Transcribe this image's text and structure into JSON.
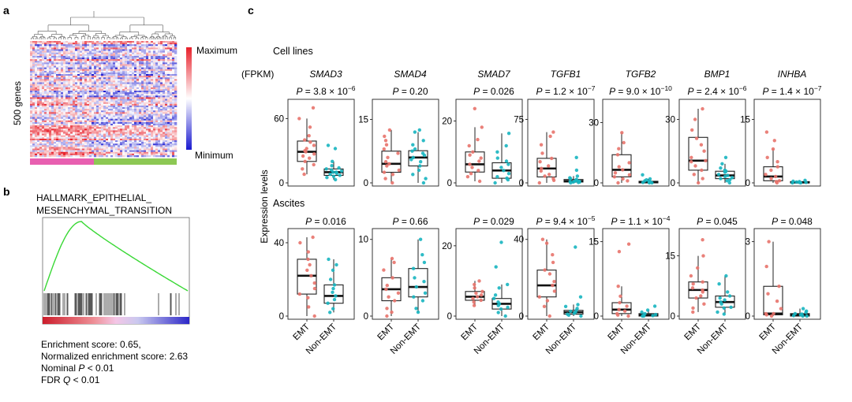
{
  "panels": {
    "a": {
      "letter": "a",
      "y_label": "500 genes",
      "legend_max": "Maximum",
      "legend_min": "Minimum",
      "colors": {
        "high": "#e8202a",
        "low": "#1a1ad0",
        "mid": "#ffffff",
        "group_emt": "#e85fb0",
        "group_non_emt": "#8dc854"
      }
    },
    "b": {
      "letter": "b",
      "title_line1": "HALLMARK_EPITHELIAL_",
      "title_line2": "MESENCHYMAL_TRANSITION",
      "stats": [
        {
          "pre": "Enrichment score: 0.65,",
          "ital": "",
          "post": ""
        },
        {
          "pre": "Normalized enrichment score: 2.63",
          "ital": "",
          "post": ""
        },
        {
          "pre": "Nominal ",
          "ital": "P",
          "post": " < 0.01"
        },
        {
          "pre": "FDR ",
          "ital": "Q",
          "post": " < 0.01"
        }
      ],
      "curve_color": "#39d835"
    },
    "c": {
      "letter": "c",
      "row1_label": "Cell lines",
      "row2_label": "Ascites",
      "unit_label": "(FPKM)",
      "y_axis_label": "Expression levels",
      "categories": [
        "EMT",
        "Non-EMT"
      ],
      "colors": {
        "EMT": "#e8736b",
        "Non-EMT": "#17b5c0"
      }
    }
  },
  "chart_data": [
    {
      "type": "boxplot",
      "row": "Cell lines",
      "gene": "SMAD3",
      "p_mant": "3.8",
      "p_exp": "−6",
      "ylim": [
        0,
        75
      ],
      "ticks": [
        {
          "v": 0,
          "label": "0"
        },
        {
          "v": 60,
          "label": "60"
        }
      ],
      "boxes": [
        {
          "group": "EMT",
          "q1": 20,
          "median": 29,
          "q3": 39,
          "whisker_low": 8,
          "whisker_high": 60,
          "points": [
            8,
            13,
            17,
            20,
            23,
            25,
            27,
            29,
            30,
            32,
            35,
            38,
            40,
            44,
            52,
            60,
            70
          ]
        },
        {
          "group": "Non-EMT",
          "q1": 7,
          "median": 10,
          "q3": 13,
          "whisker_low": 3,
          "whisker_high": 20,
          "points": [
            3,
            5,
            6,
            7,
            8,
            9,
            10,
            10,
            11,
            12,
            13,
            14,
            16,
            20,
            32,
            35
          ]
        }
      ]
    },
    {
      "type": "boxplot",
      "row": "Cell lines",
      "gene": "SMAD4",
      "p_mant": "0.20",
      "p_exp": "",
      "ylim": [
        0,
        19
      ],
      "ticks": [
        {
          "v": 0,
          "label": "0"
        },
        {
          "v": 15,
          "label": "15"
        }
      ],
      "boxes": [
        {
          "group": "EMT",
          "q1": 2.5,
          "median": 4.5,
          "q3": 7.5,
          "whisker_low": 0,
          "whisker_high": 12.5,
          "points": [
            0,
            1,
            2,
            2.5,
            3,
            4,
            4.5,
            5,
            6,
            7,
            8,
            9,
            10,
            11,
            12.5
          ]
        },
        {
          "group": "Non-EMT",
          "q1": 4,
          "median": 6,
          "q3": 7.6,
          "whisker_low": 0,
          "whisker_high": 12,
          "points": [
            0,
            1,
            2,
            3,
            4,
            5,
            5.5,
            6,
            6.5,
            7,
            7.5,
            8,
            9,
            10,
            12,
            12.5
          ]
        }
      ]
    },
    {
      "type": "boxplot",
      "row": "Cell lines",
      "gene": "SMAD7",
      "p_mant": "0.026",
      "p_exp": "",
      "ylim": [
        0,
        26
      ],
      "ticks": [
        {
          "v": 0,
          "label": "0"
        },
        {
          "v": 20,
          "label": "20"
        }
      ],
      "boxes": [
        {
          "group": "EMT",
          "q1": 3.5,
          "median": 6,
          "q3": 10,
          "whisker_low": 0.5,
          "whisker_high": 18,
          "points": [
            0.5,
            2,
            3,
            4,
            5,
            6,
            7,
            8,
            9,
            10,
            12,
            14,
            18,
            24
          ]
        },
        {
          "group": "Non-EMT",
          "q1": 1.5,
          "median": 4,
          "q3": 6.5,
          "whisker_low": 0,
          "whisker_high": 16,
          "points": [
            0,
            1,
            1.5,
            2,
            3,
            4,
            5,
            6,
            7,
            8,
            10,
            12,
            16
          ]
        }
      ]
    },
    {
      "type": "boxplot",
      "row": "Cell lines",
      "gene": "TGFB1",
      "p_mant": "1.2",
      "p_exp": "−7",
      "ylim": [
        0,
        95
      ],
      "ticks": [
        {
          "v": 0,
          "label": "0"
        },
        {
          "v": 75,
          "label": "75"
        }
      ],
      "boxes": [
        {
          "group": "EMT",
          "q1": 7,
          "median": 17,
          "q3": 29,
          "whisker_low": 0,
          "whisker_high": 60,
          "points": [
            0,
            3,
            5,
            8,
            10,
            14,
            17,
            20,
            25,
            29,
            35,
            45,
            55,
            60
          ]
        },
        {
          "group": "Non-EMT",
          "q1": 1,
          "median": 2,
          "q3": 4,
          "whisker_low": 0,
          "whisker_high": 8,
          "points": [
            0,
            0.5,
            1,
            1,
            1.5,
            2,
            2,
            3,
            3,
            4,
            5,
            6,
            8,
            15,
            30
          ]
        }
      ]
    },
    {
      "type": "boxplot",
      "row": "Cell lines",
      "gene": "TGFB2",
      "p_mant": "9.0",
      "p_exp": "−10",
      "ylim": [
        0,
        40
      ],
      "ticks": [
        {
          "v": 0,
          "label": "0"
        },
        {
          "v": 30,
          "label": "30"
        }
      ],
      "boxes": [
        {
          "group": "EMT",
          "q1": 3,
          "median": 6.5,
          "q3": 14,
          "whisker_low": 0,
          "whisker_high": 25,
          "points": [
            0,
            1,
            2,
            3,
            4,
            5,
            6.5,
            8,
            10,
            14,
            17,
            20,
            25
          ]
        },
        {
          "group": "Non-EMT",
          "q1": 0,
          "median": 0.3,
          "q3": 0.8,
          "whisker_low": 0,
          "whisker_high": 2,
          "points": [
            0,
            0,
            0.2,
            0.3,
            0.5,
            0.8,
            1,
            1.5,
            2,
            4
          ]
        }
      ]
    },
    {
      "type": "boxplot",
      "row": "Cell lines",
      "gene": "BMP1",
      "p_mant": "2.4",
      "p_exp": "−6",
      "ylim": [
        0,
        38
      ],
      "ticks": [
        {
          "v": 0,
          "label": "0"
        },
        {
          "v": 30,
          "label": "30"
        }
      ],
      "boxes": [
        {
          "group": "EMT",
          "q1": 6,
          "median": 10.5,
          "q3": 21.5,
          "whisker_low": 0,
          "whisker_high": 35,
          "points": [
            0,
            2,
            4,
            6,
            8,
            10,
            10.5,
            12,
            15,
            18,
            21,
            25,
            30,
            35
          ]
        },
        {
          "group": "Non-EMT",
          "q1": 2,
          "median": 3.5,
          "q3": 5.5,
          "whisker_low": 0,
          "whisker_high": 9,
          "points": [
            0,
            1,
            1.5,
            2,
            2.5,
            3,
            3.5,
            4,
            5,
            5.5,
            6,
            7,
            9,
            12
          ]
        }
      ]
    },
    {
      "type": "boxplot",
      "row": "Cell lines",
      "gene": "INHBA",
      "p_mant": "1.4",
      "p_exp": "−7",
      "ylim": [
        0,
        19
      ],
      "ticks": [
        {
          "v": 0,
          "label": "0"
        },
        {
          "v": 15,
          "label": "15"
        }
      ],
      "boxes": [
        {
          "group": "EMT",
          "q1": 0.5,
          "median": 1.5,
          "q3": 3.8,
          "whisker_low": 0,
          "whisker_high": 8,
          "points": [
            0,
            0.3,
            0.5,
            1,
            1.5,
            2,
            3,
            3.8,
            5,
            6,
            8,
            10,
            12
          ]
        },
        {
          "group": "Non-EMT",
          "q1": 0,
          "median": 0.1,
          "q3": 0.3,
          "whisker_low": 0,
          "whisker_high": 0.6,
          "points": [
            0,
            0,
            0.1,
            0.1,
            0.2,
            0.3,
            0.4,
            0.6
          ]
        }
      ]
    },
    {
      "type": "boxplot",
      "row": "Ascites",
      "gene": "SMAD3",
      "p_mant": "0.016",
      "p_exp": "",
      "ylim": [
        0,
        46
      ],
      "ticks": [
        {
          "v": 0,
          "label": "0"
        },
        {
          "v": 40,
          "label": "40"
        }
      ],
      "boxes": [
        {
          "group": "EMT",
          "q1": 12,
          "median": 22,
          "q3": 31,
          "whisker_low": 0,
          "whisker_high": 43,
          "points": [
            0,
            5,
            10,
            12,
            15,
            18,
            22,
            25,
            28,
            31,
            35,
            40,
            43
          ]
        },
        {
          "group": "Non-EMT",
          "q1": 7,
          "median": 11,
          "q3": 17,
          "whisker_low": 2,
          "whisker_high": 31,
          "points": [
            2,
            4,
            7,
            9,
            11,
            13,
            15,
            17,
            20,
            25,
            28,
            31
          ]
        }
      ]
    },
    {
      "type": "boxplot",
      "row": "Ascites",
      "gene": "SMAD4",
      "p_mant": "0.66",
      "p_exp": "",
      "ylim": [
        0,
        11
      ],
      "ticks": [
        {
          "v": 0,
          "label": "0"
        },
        {
          "v": 10,
          "label": "10"
        }
      ],
      "boxes": [
        {
          "group": "EMT",
          "q1": 2,
          "median": 3.5,
          "q3": 5,
          "whisker_low": 0,
          "whisker_high": 7.5,
          "points": [
            0,
            0.5,
            1,
            2,
            2.5,
            3,
            3.5,
            4,
            5,
            6,
            7,
            7.5
          ]
        },
        {
          "group": "Non-EMT",
          "q1": 2.5,
          "median": 3.8,
          "q3": 6.2,
          "whisker_low": 0.5,
          "whisker_high": 10,
          "points": [
            0.5,
            1,
            2,
            2.5,
            3,
            3.8,
            4.5,
            5,
            6.2,
            7,
            8,
            10
          ]
        }
      ]
    },
    {
      "type": "boxplot",
      "row": "Ascites",
      "gene": "SMAD7",
      "p_mant": "0.029",
      "p_exp": "",
      "ylim": [
        0,
        24
      ],
      "ticks": [
        {
          "v": 0,
          "label": "0"
        },
        {
          "v": 20,
          "label": "20"
        }
      ],
      "boxes": [
        {
          "group": "EMT",
          "q1": 4.5,
          "median": 5.5,
          "q3": 7,
          "whisker_low": 3,
          "whisker_high": 10,
          "points": [
            3,
            4,
            4.5,
            5,
            5.5,
            6,
            6.5,
            7,
            8,
            9,
            10
          ]
        },
        {
          "group": "Non-EMT",
          "q1": 2,
          "median": 3.5,
          "q3": 5,
          "whisker_low": 0,
          "whisker_high": 9,
          "points": [
            0,
            1,
            2,
            2.5,
            3,
            3.5,
            4,
            5,
            6,
            8,
            9,
            14,
            21
          ]
        }
      ]
    },
    {
      "type": "boxplot",
      "row": "Ascites",
      "gene": "TGFB1",
      "p_mant": "9.4",
      "p_exp": "−5",
      "ylim": [
        0,
        44
      ],
      "ticks": [
        {
          "v": 0,
          "label": "0"
        },
        {
          "v": 40,
          "label": "40"
        }
      ],
      "boxes": [
        {
          "group": "EMT",
          "q1": 10,
          "median": 16,
          "q3": 24,
          "whisker_low": 0,
          "whisker_high": 40,
          "points": [
            0,
            5,
            8,
            10,
            13,
            16,
            18,
            22,
            24,
            28,
            32,
            38,
            40
          ]
        },
        {
          "group": "Non-EMT",
          "q1": 1,
          "median": 2,
          "q3": 3,
          "whisker_low": 0,
          "whisker_high": 6,
          "points": [
            0,
            0.5,
            1,
            1.5,
            2,
            2.5,
            3,
            4,
            5,
            6,
            10,
            36
          ]
        }
      ]
    },
    {
      "type": "boxplot",
      "row": "Ascites",
      "gene": "TGFB2",
      "p_mant": "1.1",
      "p_exp": "−4",
      "ylim": [
        0,
        17
      ],
      "ticks": [
        {
          "v": 0,
          "label": "0"
        },
        {
          "v": 15,
          "label": "15"
        }
      ],
      "boxes": [
        {
          "group": "EMT",
          "q1": 0.5,
          "median": 1.3,
          "q3": 2.7,
          "whisker_low": 0,
          "whisker_high": 6,
          "points": [
            0,
            0.2,
            0.5,
            1,
            1.3,
            2,
            2.7,
            4,
            6,
            13,
            14.5
          ]
        },
        {
          "group": "Non-EMT",
          "q1": 0,
          "median": 0.2,
          "q3": 0.5,
          "whisker_low": 0,
          "whisker_high": 1.2,
          "points": [
            0,
            0,
            0.1,
            0.2,
            0.3,
            0.5,
            0.8,
            1.2,
            2
          ]
        }
      ]
    },
    {
      "type": "boxplot",
      "row": "Ascites",
      "gene": "BMP1",
      "p_mant": "0.045",
      "p_exp": "",
      "ylim": [
        0,
        21
      ],
      "ticks": [
        {
          "v": 0,
          "label": "0"
        },
        {
          "v": 15,
          "label": "15"
        }
      ],
      "boxes": [
        {
          "group": "EMT",
          "q1": 4.5,
          "median": 6.5,
          "q3": 8.5,
          "whisker_low": 1,
          "whisker_high": 15,
          "points": [
            1,
            2,
            3,
            4.5,
            5,
            6,
            6.5,
            7,
            8,
            8.5,
            10,
            12,
            15,
            19
          ]
        },
        {
          "group": "Non-EMT",
          "q1": 2.2,
          "median": 3.5,
          "q3": 5,
          "whisker_low": 0.5,
          "whisker_high": 10,
          "points": [
            0.5,
            1,
            2,
            2.2,
            3,
            3.5,
            4,
            4.5,
            5,
            6,
            8,
            10
          ]
        }
      ]
    },
    {
      "type": "boxplot",
      "row": "Ascites",
      "gene": "INHBA",
      "p_mant": "0.048",
      "p_exp": "",
      "ylim": [
        0,
        3.4
      ],
      "ticks": [
        {
          "v": 0,
          "label": "0"
        },
        {
          "v": 3,
          "label": "3"
        }
      ],
      "boxes": [
        {
          "group": "EMT",
          "q1": 0.05,
          "median": 0.1,
          "q3": 1.2,
          "whisker_low": 0,
          "whisker_high": 3,
          "points": [
            0,
            0.05,
            0.1,
            0.1,
            0.3,
            0.6,
            0.9,
            1.2,
            2,
            3
          ]
        },
        {
          "group": "Non-EMT",
          "q1": 0,
          "median": 0.05,
          "q3": 0.1,
          "whisker_low": 0,
          "whisker_high": 0.3,
          "points": [
            0,
            0,
            0.02,
            0.05,
            0.08,
            0.1,
            0.15,
            0.2,
            0.3
          ]
        }
      ]
    }
  ]
}
